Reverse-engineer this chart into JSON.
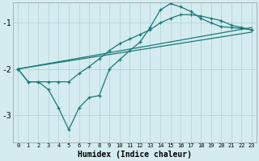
{
  "background_color": "#d4ecef",
  "grid_color": "#b0d0d4",
  "line_color": "#1a7878",
  "xlabel": "Humidex (Indice chaleur)",
  "xlim": [
    -0.5,
    23.5
  ],
  "ylim": [
    -3.6,
    -0.55
  ],
  "x_ticks": [
    0,
    1,
    2,
    3,
    4,
    5,
    6,
    7,
    8,
    9,
    10,
    11,
    12,
    13,
    14,
    15,
    16,
    17,
    18,
    19,
    20,
    21,
    22,
    23
  ],
  "y_ticks": [
    -3,
    -2,
    -1
  ],
  "lines": [
    {
      "x": [
        0,
        23
      ],
      "y": [
        -2.0,
        -1.1
      ],
      "marker": false,
      "lw": 0.9
    },
    {
      "x": [
        0,
        23
      ],
      "y": [
        -2.0,
        -1.2
      ],
      "marker": false,
      "lw": 0.9
    },
    {
      "x": [
        0,
        1,
        2,
        3,
        4,
        5,
        6,
        7,
        8,
        9,
        10,
        11,
        12,
        13,
        14,
        15,
        16,
        17,
        18,
        19,
        20,
        21,
        22,
        23
      ],
      "y": [
        -2.0,
        -2.28,
        -2.28,
        -2.28,
        -2.28,
        -2.28,
        -2.1,
        -1.95,
        -1.78,
        -1.6,
        -1.45,
        -1.35,
        -1.25,
        -1.15,
        -1.0,
        -0.9,
        -0.82,
        -0.82,
        -0.85,
        -0.9,
        -0.95,
        -1.05,
        -1.1,
        -1.15
      ],
      "marker": true,
      "lw": 0.9
    },
    {
      "x": [
        0,
        1,
        2,
        3,
        4,
        5,
        6,
        7,
        8,
        9,
        10,
        11,
        12,
        13,
        14,
        15,
        16,
        17,
        18,
        19,
        20,
        21,
        22,
        23
      ],
      "y": [
        -2.0,
        -2.28,
        -2.28,
        -2.45,
        -2.85,
        -3.32,
        -2.85,
        -2.62,
        -2.58,
        -2.0,
        -1.8,
        -1.6,
        -1.42,
        -1.1,
        -0.72,
        -0.58,
        -0.65,
        -0.75,
        -0.9,
        -1.0,
        -1.08,
        -1.1,
        -1.12,
        -1.15
      ],
      "marker": true,
      "lw": 0.9
    }
  ]
}
